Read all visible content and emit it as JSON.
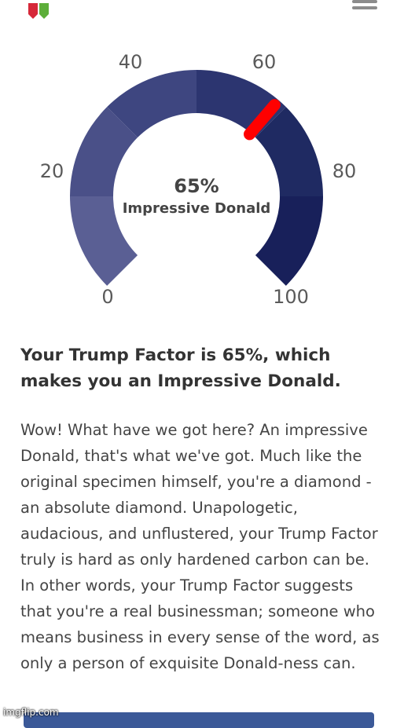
{
  "gauge": {
    "value": 65,
    "min": 0,
    "max": 100,
    "percent_text": "65%",
    "label": "Impressive Donald",
    "ticks": [
      "0",
      "20",
      "40",
      "60",
      "80",
      "100"
    ],
    "segment_colors": [
      "#5a5f94",
      "#4a5088",
      "#3e4680",
      "#2c3570",
      "#1f2a62",
      "#18205a"
    ],
    "needle_color": "#ff0000"
  },
  "result": {
    "headline": "Your Trump Factor is 65%, which makes you an Impressive Donald.",
    "body": "Wow! What have we got here? An impressive Donald, that's what we've got. Much like the original specimen himself, you're a diamond - an absolute diamond. Unapologetic, audacious, and unflustered, your Trump Factor truly is hard as only hardened carbon can be. In other words, your Trump Factor suggests that you're a real businessman; someone who means business in every sense of the word, as only a person of exquisite Donald-ness can."
  },
  "watermark": "imgflip.com",
  "icons": {
    "logo": "hexagon-logo-icon",
    "menu": "hamburger-menu-icon"
  }
}
